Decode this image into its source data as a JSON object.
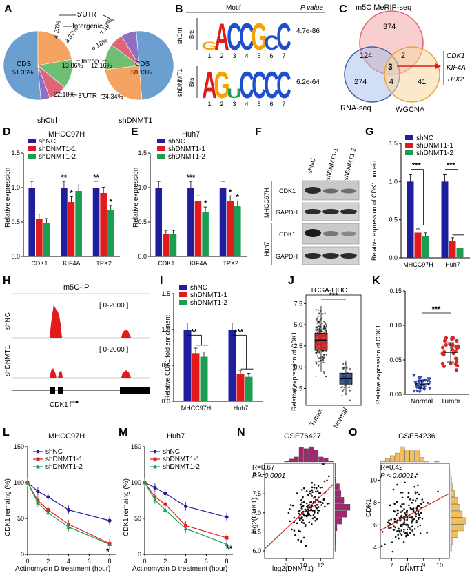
{
  "colors": {
    "navy": "#1f1f9e",
    "red": "#e31a1c",
    "green": "#1b9e52",
    "cds": "#6a9fcf",
    "utr3": "#f4a460",
    "intron": "#6fbf73",
    "intergenic": "#e06377",
    "utr5": "#8e6fc1",
    "tumor": "#d62728",
    "normal": "#1f3f7f"
  },
  "panel_letters": [
    "A",
    "B",
    "C",
    "D",
    "E",
    "F",
    "G",
    "H",
    "I",
    "J",
    "K",
    "L",
    "M",
    "N",
    "O"
  ],
  "panel_A": {
    "labels": [
      "5'UTR",
      "Intergenic",
      "Intron",
      "3'UTR"
    ],
    "left": {
      "name": "shCtrl",
      "cds_label": "CDS",
      "cds_pct": "51.36%",
      "utr3_pct": "22.18%",
      "intron_pct": "13.86%",
      "intergenic_pct": "8.37%",
      "utr5_pct": "4.23%"
    },
    "right": {
      "name": "shDNMT1",
      "cds_label": "CDS",
      "cds_pct": "50.13%",
      "utr3_pct": "24.34%",
      "intron_pct": "12.16%",
      "intergenic_pct": "6.18%",
      "utr5_pct": "7.19%"
    },
    "chart_data": [
      {
        "type": "pie",
        "categories": [
          "CDS",
          "3'UTR",
          "Intron",
          "Intergenic",
          "5'UTR"
        ],
        "values": [
          51.36,
          22.18,
          13.86,
          8.37,
          4.23
        ],
        "title": "shCtrl"
      },
      {
        "type": "pie",
        "categories": [
          "CDS",
          "3'UTR",
          "Intron",
          "Intergenic",
          "5'UTR"
        ],
        "values": [
          50.13,
          24.34,
          12.16,
          6.18,
          7.19
        ],
        "title": "shDNMT1"
      }
    ]
  },
  "panel_B": {
    "header_motif": "Motif",
    "header_p": "P value",
    "row1": {
      "label": "shCtrl",
      "bits": "Bits",
      "seq": [
        "G",
        "A",
        "C",
        "C",
        "G",
        "C",
        "C"
      ],
      "p": "4.7e-86"
    },
    "row2": {
      "label": "shDNMT1",
      "bits": "Bits",
      "seq": [
        "A",
        "G",
        "U",
        "C",
        "C",
        "C",
        "C"
      ],
      "p": "6.2e-64"
    },
    "positions": [
      "1",
      "2",
      "3",
      "4",
      "5",
      "6",
      "7"
    ]
  },
  "panel_C": {
    "set1": "m5C MeRIP-seq",
    "set2": "RNA-seq",
    "set3": "WGCNA",
    "n_a": "374",
    "n_b": "124",
    "n_c": "2",
    "n_d": "274",
    "n_e": "3",
    "n_f": "41",
    "n_g": "4",
    "genes": [
      "CDK1",
      "KIF4A",
      "TPX2"
    ]
  },
  "panel_D": {
    "title": "MHCC97H",
    "ylabel": "Relative expression",
    "legend": [
      "shNC",
      "shDNMT1-1",
      "shDNMT1-2"
    ],
    "yticks": [
      "0.0",
      "0.5",
      "1.0",
      "1.5"
    ],
    "chart_data": {
      "type": "bar",
      "categories": [
        "CDK1",
        "KIF4A",
        "TPX2"
      ],
      "ylim": [
        0,
        1.5
      ],
      "series": [
        {
          "name": "shNC",
          "values": [
            1.0,
            1.0,
            1.0
          ]
        },
        {
          "name": "shDNMT1-1",
          "values": [
            0.55,
            0.79,
            0.92
          ]
        },
        {
          "name": "shDNMT1-2",
          "values": [
            0.49,
            0.95,
            0.67
          ]
        }
      ],
      "stars": [
        [
          "",
          "**",
          "**"
        ],
        [
          "",
          "*",
          ""
        ],
        [
          "",
          "",
          "*"
        ]
      ]
    }
  },
  "panel_E": {
    "title": "Huh7",
    "ylabel": "Relative expression",
    "legend": [
      "shNC",
      "shDNMT1-1",
      "shDNMT1-2"
    ],
    "yticks": [
      "0.0",
      "0.5",
      "1.0",
      "1.5"
    ],
    "chart_data": {
      "type": "bar",
      "categories": [
        "CDK1",
        "KIF4A",
        "TPX2"
      ],
      "ylim": [
        0,
        1.5
      ],
      "series": [
        {
          "name": "shNC",
          "values": [
            1.0,
            1.0,
            1.0
          ]
        },
        {
          "name": "shDNMT1-1",
          "values": [
            0.33,
            0.8,
            0.8
          ]
        },
        {
          "name": "shDNMT1-2",
          "values": [
            0.33,
            0.65,
            0.73
          ]
        }
      ],
      "stars": [
        [
          "",
          "***",
          ""
        ],
        [
          "",
          "",
          "*"
        ],
        [
          "",
          "*",
          "*"
        ]
      ]
    }
  },
  "panel_F": {
    "cols": [
      "shNC",
      "shDNMT1-1",
      "shDNMT1-2"
    ],
    "rows": [
      "CDK1",
      "GAPDH",
      "CDK1",
      "GAPDH"
    ],
    "groups": [
      "MHCC97H",
      "Huh7"
    ]
  },
  "panel_G": {
    "ylabel": "Relative expression of CDK1 protein",
    "legend": [
      "shNC",
      "shDNMT1-1",
      "shDNMT1-2"
    ],
    "yticks": [
      "0.0",
      "0.5",
      "1.0",
      "1.5"
    ],
    "sig": "***",
    "chart_data": {
      "type": "bar",
      "categories": [
        "MHCC97H",
        "Huh7"
      ],
      "ylim": [
        0,
        1.5
      ],
      "series": [
        {
          "name": "shNC",
          "values": [
            1.0,
            1.0
          ]
        },
        {
          "name": "shDNMT1-1",
          "values": [
            0.33,
            0.22
          ]
        },
        {
          "name": "shDNMT1-2",
          "values": [
            0.28,
            0.13
          ]
        }
      ]
    }
  },
  "panel_H": {
    "title": "m5C-IP",
    "range1": "[ 0-2000 ]",
    "range2": "[ 0-2000 ]",
    "track1": "shNC",
    "track2": "shDNMT1",
    "gene": "CDK1"
  },
  "panel_I": {
    "ylabel": "Relative CDK1 fold enrichment",
    "legend": [
      "shNC",
      "shDNMT1-1",
      "shDNMT1-2"
    ],
    "yticks": [
      "0.0",
      "0.5",
      "1.0",
      "1.5"
    ],
    "sig1": "**",
    "sig2": "***",
    "chart_data": {
      "type": "bar",
      "categories": [
        "MHCC97H",
        "Huh7"
      ],
      "ylim": [
        0,
        1.5
      ],
      "series": [
        {
          "name": "shNC",
          "values": [
            1.0,
            1.0
          ]
        },
        {
          "name": "shDNMT1-1",
          "values": [
            0.67,
            0.38
          ]
        },
        {
          "name": "shDNMT1-2",
          "values": [
            0.62,
            0.34
          ]
        }
      ]
    }
  },
  "panel_J": {
    "title": "TCGA-LIHC",
    "ylabel": "Relative expression of CDK1",
    "yticks": [
      "-2.5",
      "0.0",
      "2.5",
      "5.0",
      "7.5"
    ],
    "sig": "***",
    "chart_data": {
      "type": "box",
      "categories": [
        "Tumor",
        "Normal"
      ],
      "ylim": [
        -4.5,
        8.5
      ],
      "boxes": [
        {
          "name": "Tumor",
          "q1": 2.0,
          "median": 3.2,
          "q3": 4.0,
          "min": -0.5,
          "max": 7.2
        },
        {
          "name": "Normal",
          "q1": -2.0,
          "median": -1.3,
          "q3": -0.7,
          "min": -3.3,
          "max": 0.8
        }
      ]
    }
  },
  "panel_K": {
    "ylabel": "Relative expression of CDK1",
    "yticks": [
      "0.00",
      "0.05",
      "0.10",
      "0.15"
    ],
    "sig": "***",
    "chart_data": {
      "type": "scatter",
      "categories": [
        "Normal",
        "Tumor"
      ],
      "ylim": [
        0,
        0.15
      ],
      "means": [
        0.015,
        0.061
      ],
      "sd": [
        0.006,
        0.014
      ]
    }
  },
  "panel_L": {
    "title": "MHCC97H",
    "xlabel": "Actinomycin D treatment (hour)",
    "ylabel": "CDK1 remaing (%)",
    "legend": [
      "shNC",
      "shDNMT1-1",
      "shDNMT1-2"
    ],
    "yticks": [
      "0",
      "50",
      "100",
      "150"
    ],
    "xticks": [
      "0",
      "2",
      "4",
      "6",
      "8"
    ],
    "sig": "*",
    "chart_data": {
      "type": "line",
      "x": [
        0,
        1,
        2,
        4,
        8
      ],
      "ylim": [
        0,
        150
      ],
      "xlim": [
        0,
        8.6
      ],
      "series": [
        {
          "name": "shNC",
          "values": [
            100,
            88,
            80,
            62,
            47
          ]
        },
        {
          "name": "shDNMT1-1",
          "values": [
            100,
            75,
            62,
            42,
            15
          ]
        },
        {
          "name": "shDNMT1-2",
          "values": [
            100,
            72,
            58,
            38,
            14
          ]
        }
      ]
    }
  },
  "panel_M": {
    "title": "Huh7",
    "xlabel": "Actinomycin D treatment (hour)",
    "ylabel": "CDK1 remaing (%)",
    "legend": [
      "shNC",
      "shDNMT1-1",
      "shDNMT1-2"
    ],
    "yticks": [
      "0",
      "50",
      "100",
      "150"
    ],
    "xticks": [
      "0",
      "2",
      "4",
      "6",
      "8"
    ],
    "sig": "**",
    "chart_data": {
      "type": "line",
      "x": [
        0,
        1,
        2,
        4,
        8
      ],
      "ylim": [
        0,
        150
      ],
      "xlim": [
        0,
        8.6
      ],
      "series": [
        {
          "name": "shNC",
          "values": [
            100,
            93,
            85,
            67,
            52
          ]
        },
        {
          "name": "shDNMT1-1",
          "values": [
            100,
            80,
            70,
            40,
            23
          ]
        },
        {
          "name": "shDNMT1-2",
          "values": [
            100,
            76,
            62,
            36,
            14
          ]
        }
      ]
    }
  },
  "panel_N": {
    "title": "GSE76427",
    "xlabel": "log2(DNMT1)",
    "ylabel": "log2(CDK1)",
    "stat_r": "R=0.67",
    "stat_p": "P < 0.0001",
    "xticks": [
      "8",
      "10",
      "12"
    ],
    "yticks": [
      "6.0",
      "6.5",
      "7.0",
      "7.5",
      "8.0"
    ],
    "chart_data": {
      "type": "scatter",
      "xlim": [
        5.5,
        13.5
      ],
      "ylim": [
        5.8,
        8.3
      ],
      "fit": {
        "x": [
          5.5,
          13.5
        ],
        "y": [
          6.05,
          7.75
        ]
      }
    }
  },
  "panel_O": {
    "title": "GSE54236",
    "xlabel": "DNMT1",
    "ylabel": "CDK1",
    "stat_r": "R=0.42",
    "stat_p": "P < 0.0001",
    "xticks": [
      "7",
      "8",
      "9",
      "10"
    ],
    "yticks": [
      "4",
      "6",
      "8",
      "10"
    ],
    "chart_data": {
      "type": "scatter",
      "xlim": [
        6.3,
        10.6
      ],
      "ylim": [
        3,
        11.5
      ],
      "fit": {
        "x": [
          6.3,
          10.6
        ],
        "y": [
          5.5,
          8.8
        ]
      }
    }
  }
}
